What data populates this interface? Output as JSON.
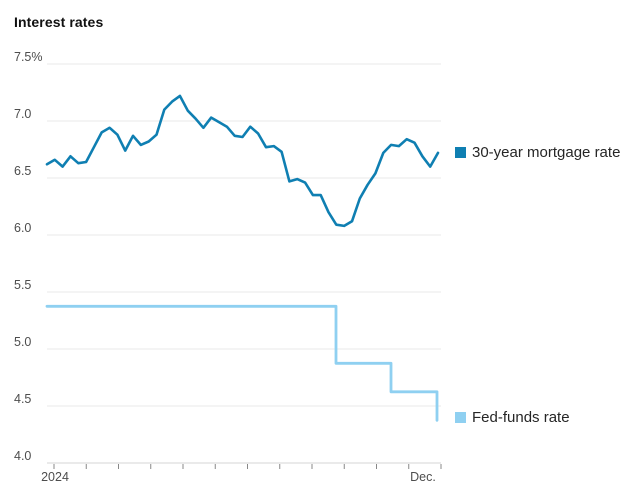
{
  "title": "Interest rates",
  "chart_data": {
    "type": "line",
    "title": "Interest rates",
    "xlabel": "",
    "ylabel": "",
    "ylim": [
      4.0,
      7.5
    ],
    "grid": true,
    "legend_position": "right of line ends",
    "y_ticks": [
      {
        "value": 7.5,
        "label": "7.5%"
      },
      {
        "value": 7.0,
        "label": "7.0"
      },
      {
        "value": 6.5,
        "label": "6.5"
      },
      {
        "value": 6.0,
        "label": "6.0"
      },
      {
        "value": 5.5,
        "label": "5.5"
      },
      {
        "value": 5.0,
        "label": "5.0"
      },
      {
        "value": 4.5,
        "label": "4.5"
      },
      {
        "value": 4.0,
        "label": "4.0"
      }
    ],
    "x_axis": {
      "tick_count": 13,
      "start_label": "2024",
      "end_label": "Dec."
    },
    "series": [
      {
        "name": "30-year mortgage rate",
        "type": "line",
        "color": "#0f7fb2",
        "cadence": "weekly",
        "values": [
          6.62,
          6.66,
          6.6,
          6.69,
          6.63,
          6.64,
          6.77,
          6.9,
          6.94,
          6.88,
          6.74,
          6.87,
          6.79,
          6.82,
          6.88,
          7.1,
          7.17,
          7.22,
          7.09,
          7.02,
          6.94,
          7.03,
          6.99,
          6.95,
          6.87,
          6.86,
          6.95,
          6.89,
          6.77,
          6.78,
          6.73,
          6.47,
          6.49,
          6.46,
          6.35,
          6.35,
          6.2,
          6.09,
          6.08,
          6.12,
          6.32,
          6.44,
          6.54,
          6.72,
          6.79,
          6.78,
          6.84,
          6.81,
          6.69,
          6.6,
          6.72
        ]
      },
      {
        "name": "Fed-funds rate",
        "type": "step",
        "color": "#8fd0f1",
        "points": [
          [
            0.0,
            5.375
          ],
          [
            0.7354,
            5.375
          ],
          [
            0.7354,
            4.875
          ],
          [
            0.8753,
            4.875
          ],
          [
            0.8753,
            4.625
          ],
          [
            0.9924,
            4.625
          ],
          [
            0.9924,
            4.375
          ]
        ]
      }
    ]
  },
  "colors": {
    "grid": "#e9e9e9",
    "axis_line": "#d4d4d4",
    "tick_mark": "#888888",
    "axis_label": "#4d4d4d",
    "title_text": "#111111",
    "legend_text": "#262626"
  }
}
